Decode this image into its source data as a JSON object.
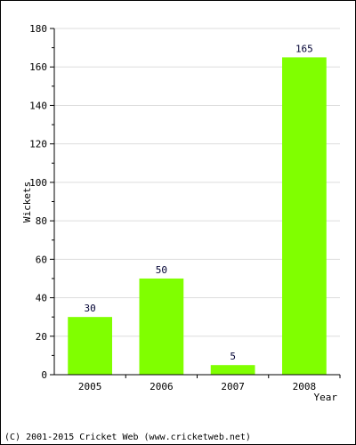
{
  "chart_data": {
    "type": "bar",
    "categories": [
      "2005",
      "2006",
      "2007",
      "2008"
    ],
    "values": [
      30,
      50,
      5,
      165
    ],
    "value_labels": [
      "30",
      "50",
      "5",
      "165"
    ],
    "xlabel": "Year",
    "ylabel": "Wickets",
    "ylim": [
      0,
      180
    ],
    "yticks": [
      "0",
      "20",
      "40",
      "60",
      "80",
      "100",
      "120",
      "140",
      "160",
      "180"
    ],
    "grid": true,
    "bar_color": "#80ff00"
  },
  "footer": {
    "copyright": "(C) 2001-2015 Cricket Web (www.cricketweb.net)"
  }
}
